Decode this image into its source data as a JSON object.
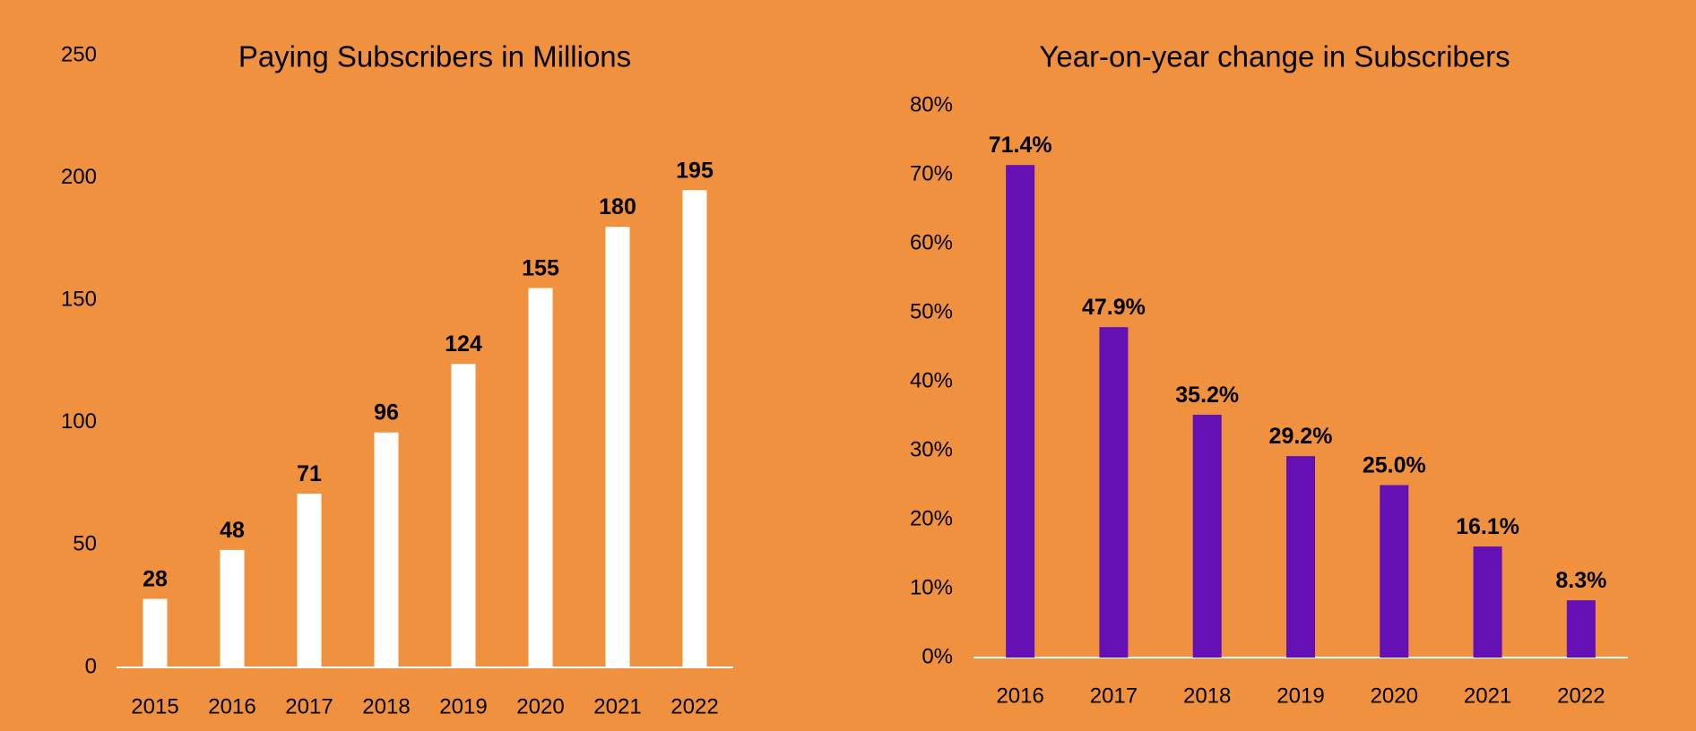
{
  "background": "#F0913F",
  "chart_data": [
    {
      "type": "bar",
      "title": "Paying Subscribers in Millions",
      "categories": [
        "2015",
        "2016",
        "2017",
        "2018",
        "2019",
        "2020",
        "2021",
        "2022"
      ],
      "values": [
        28,
        48,
        71,
        96,
        124,
        155,
        180,
        195
      ],
      "data_labels": [
        "28",
        "48",
        "71",
        "96",
        "124",
        "155",
        "180",
        "195"
      ],
      "y_ticks": [
        "0",
        "50",
        "100",
        "150",
        "200",
        "250"
      ],
      "ylim": [
        0,
        250
      ],
      "bar_color": "#FFFFFF",
      "grid": false
    },
    {
      "type": "bar",
      "title": "Year-on-year change in Subscribers",
      "categories": [
        "2016",
        "2017",
        "2018",
        "2019",
        "2020",
        "2021",
        "2022"
      ],
      "values": [
        71.4,
        47.9,
        35.2,
        29.2,
        25.0,
        16.1,
        8.3
      ],
      "data_labels": [
        "71.4%",
        "47.9%",
        "35.2%",
        "29.2%",
        "25.0%",
        "16.1%",
        "8.3%"
      ],
      "y_ticks": [
        "0%",
        "10%",
        "20%",
        "30%",
        "40%",
        "50%",
        "60%",
        "70%",
        "80%"
      ],
      "ylim": [
        0,
        80
      ],
      "bar_color": "#6410B5",
      "grid": false
    }
  ]
}
